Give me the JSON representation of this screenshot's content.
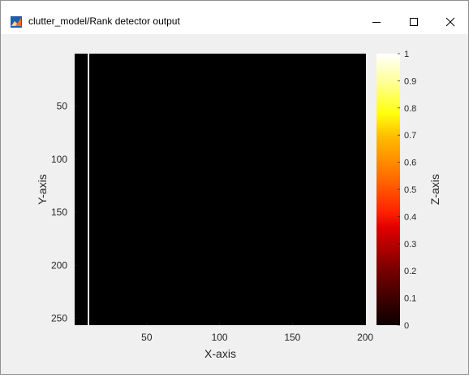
{
  "window": {
    "title": "clutter_model/Rank detector output",
    "controls": {
      "minimize": "minimize-icon",
      "maximize": "maximize-icon",
      "close": "close-icon"
    }
  },
  "chart_data": {
    "type": "heatmap",
    "title": "",
    "xlabel": "X-axis",
    "ylabel": "Y-axis",
    "zlabel": "Z-axis",
    "xlim": [
      0.5,
      200.5
    ],
    "ylim": [
      0.5,
      256.5
    ],
    "clim": [
      0,
      1
    ],
    "y_reversed": true,
    "colormap": "hot",
    "x_ticks": [
      50,
      100,
      150,
      200
    ],
    "y_ticks": [
      50,
      100,
      150,
      200,
      250
    ],
    "colorbar_ticks": [
      0,
      0.1,
      0.2,
      0.3,
      0.4,
      0.5,
      0.6,
      0.7,
      0.8,
      0.9,
      1
    ],
    "background_value": 0,
    "columns_with_value_1": [
      10
    ],
    "grid": false,
    "colors": {
      "axes_background": "#ffffff",
      "figure_background": "#f0f0f0"
    }
  }
}
